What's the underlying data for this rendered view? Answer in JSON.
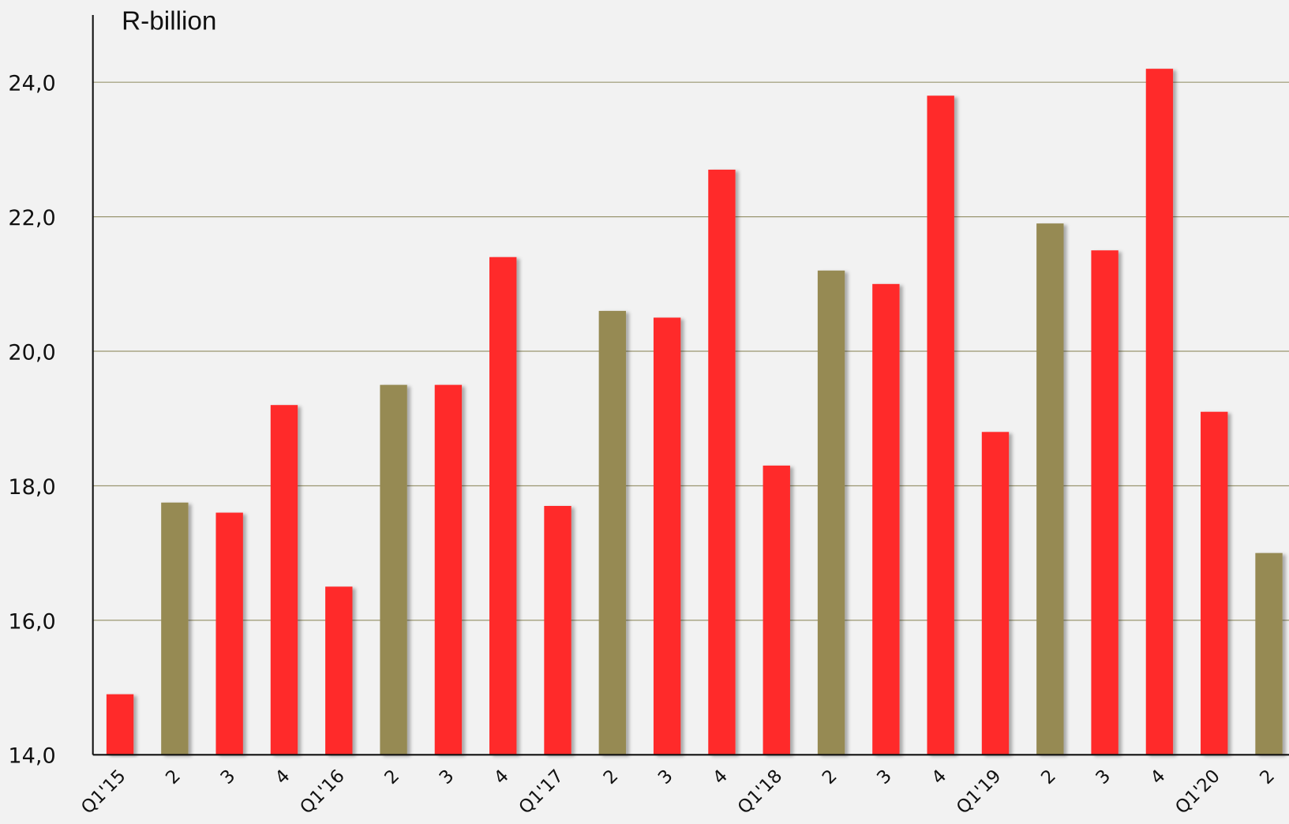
{
  "chart_data": {
    "type": "bar",
    "y_label": "R-billion",
    "categories": [
      "Q1'15",
      "2",
      "3",
      "4",
      "Q1'16",
      "2",
      "3",
      "4",
      "Q1'17",
      "2",
      "3",
      "4",
      "Q1'18",
      "2",
      "3",
      "4",
      "Q1'19",
      "2",
      "3",
      "4",
      "Q1'20",
      "2"
    ],
    "values": [
      14.9,
      17.75,
      17.6,
      19.2,
      16.5,
      19.5,
      19.5,
      21.4,
      17.7,
      20.6,
      20.5,
      22.7,
      18.3,
      21.2,
      21.0,
      23.8,
      18.8,
      21.9,
      21.5,
      24.2,
      19.1,
      17.0
    ],
    "colors": [
      "#ff2a2a",
      "#968a52",
      "#ff2a2a",
      "#ff2a2a",
      "#ff2a2a",
      "#968a52",
      "#ff2a2a",
      "#ff2a2a",
      "#ff2a2a",
      "#968a52",
      "#ff2a2a",
      "#ff2a2a",
      "#ff2a2a",
      "#968a52",
      "#ff2a2a",
      "#ff2a2a",
      "#ff2a2a",
      "#968a52",
      "#ff2a2a",
      "#ff2a2a",
      "#ff2a2a",
      "#968a52"
    ],
    "ylim": [
      14,
      25
    ],
    "yticks": [
      {
        "value": 14,
        "label": "14,0"
      },
      {
        "value": 16,
        "label": "16,0"
      },
      {
        "value": 18,
        "label": "18,0"
      },
      {
        "value": 20,
        "label": "20,0"
      },
      {
        "value": 22,
        "label": "22,0"
      },
      {
        "value": 24,
        "label": "24,0"
      }
    ],
    "grid": true
  }
}
